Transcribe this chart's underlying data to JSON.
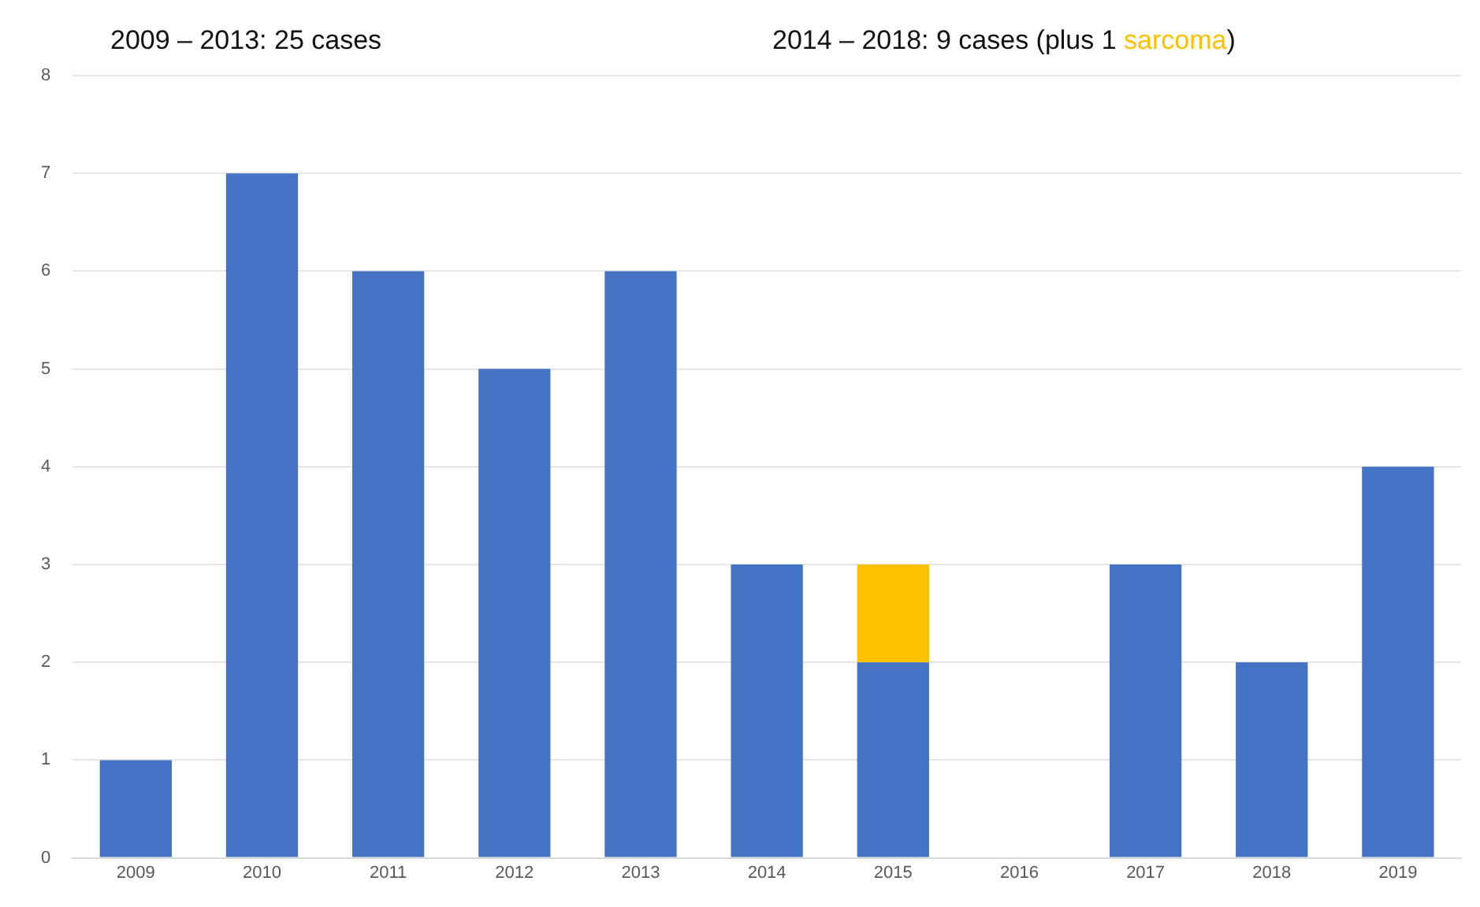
{
  "chart_data": {
    "type": "bar",
    "stacked": true,
    "categories": [
      "2009",
      "2010",
      "2011",
      "2012",
      "2013",
      "2014",
      "2015",
      "2016",
      "2017",
      "2018",
      "2019"
    ],
    "series": [
      {
        "color": "#4472c4",
        "values": [
          1,
          7,
          6,
          5,
          6,
          3,
          2,
          0,
          3,
          2,
          4
        ]
      },
      {
        "color": "#ffc000",
        "values": [
          0,
          0,
          0,
          0,
          0,
          0,
          1,
          0,
          0,
          0,
          0
        ]
      }
    ],
    "ylim": [
      0,
      8
    ],
    "yticks": [
      0,
      1,
      2,
      3,
      4,
      5,
      6,
      7,
      8
    ],
    "grid": "y",
    "legend": false,
    "annotations": [
      "2009 – 2013: 25 cases",
      "2014 – 2018: 9 cases (plus 1 ",
      "sarcoma",
      ")"
    ]
  }
}
